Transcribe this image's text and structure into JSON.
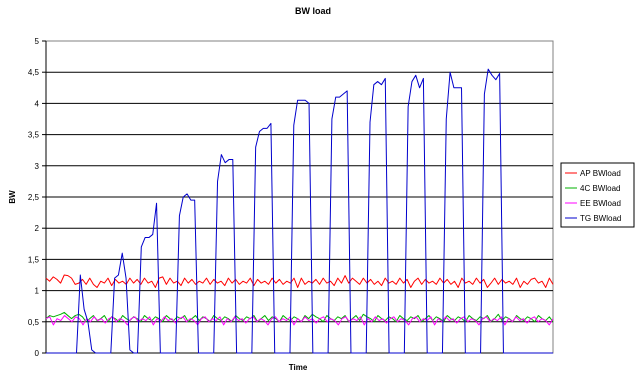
{
  "chart_data": {
    "type": "line",
    "title": "BW load",
    "xlabel": "Time",
    "ylabel": "BW",
    "ylim": [
      0,
      5
    ],
    "yticks": [
      "0",
      "0,5",
      "1",
      "1,5",
      "2",
      "2,5",
      "3",
      "3,5",
      "4",
      "4,5",
      "5"
    ],
    "grid": true,
    "legend_position": "right",
    "series": [
      {
        "name": "AP BWload",
        "color": "#ff0000",
        "values": [
          1.2,
          1.15,
          1.22,
          1.18,
          1.12,
          1.25,
          1.24,
          1.2,
          1.1,
          1.12,
          1.18,
          1.1,
          1.2,
          1.1,
          1.05,
          1.15,
          1.12,
          1.2,
          1.08,
          1.18,
          1.12,
          1.15,
          1.1,
          1.2,
          1.12,
          1.18,
          1.1,
          1.2,
          1.12,
          1.15,
          1.05,
          1.2,
          1.22,
          1.1,
          1.2,
          1.12,
          1.15,
          1.08,
          1.2,
          1.12,
          1.18,
          1.1,
          1.15,
          1.12,
          1.2,
          1.1,
          1.18,
          1.12,
          1.15,
          1.08,
          1.2,
          1.12,
          1.18,
          1.1,
          1.15,
          1.12,
          1.2,
          1.08,
          1.18,
          1.12,
          1.15,
          1.1,
          1.2,
          1.12,
          1.18,
          1.1,
          1.15,
          1.12,
          1.2,
          1.05,
          1.2,
          1.1,
          1.15,
          1.12,
          1.18,
          1.1,
          1.2,
          1.12,
          1.15,
          1.08,
          1.2,
          1.12,
          1.24,
          1.12,
          1.2,
          1.15,
          1.1,
          1.2,
          1.12,
          1.18,
          1.1,
          1.15,
          1.08,
          1.2,
          1.12,
          1.15,
          1.1,
          1.2,
          1.12,
          1.18,
          1.05,
          1.15,
          1.2,
          1.1,
          1.18,
          1.12,
          1.15,
          1.1,
          1.2,
          1.12,
          1.18,
          1.1,
          1.15,
          1.05,
          1.2,
          1.12,
          1.15,
          1.1,
          1.2,
          1.12,
          1.18,
          1.05,
          1.12,
          1.2,
          1.1,
          1.18,
          1.12,
          1.15,
          1.1,
          1.2,
          1.05,
          1.15,
          1.1,
          1.18,
          1.2,
          1.12,
          1.15,
          1.05,
          1.2,
          1.1
        ]
      },
      {
        "name": "4C BWload",
        "color": "#00b000",
        "values": [
          0.55,
          0.6,
          0.58,
          0.6,
          0.62,
          0.65,
          0.6,
          0.55,
          0.6,
          0.62,
          0.58,
          0.5,
          0.55,
          0.6,
          0.52,
          0.55,
          0.6,
          0.5,
          0.58,
          0.55,
          0.5,
          0.6,
          0.55,
          0.52,
          0.58,
          0.55,
          0.5,
          0.6,
          0.55,
          0.52,
          0.58,
          0.55,
          0.5,
          0.6,
          0.55,
          0.52,
          0.58,
          0.55,
          0.6,
          0.5,
          0.55,
          0.6,
          0.52,
          0.58,
          0.55,
          0.5,
          0.6,
          0.55,
          0.52,
          0.58,
          0.55,
          0.5,
          0.6,
          0.55,
          0.52,
          0.58,
          0.55,
          0.6,
          0.5,
          0.55,
          0.6,
          0.52,
          0.58,
          0.55,
          0.5,
          0.6,
          0.55,
          0.52,
          0.58,
          0.55,
          0.5,
          0.6,
          0.55,
          0.62,
          0.58,
          0.55,
          0.5,
          0.6,
          0.55,
          0.52,
          0.58,
          0.55,
          0.6,
          0.5,
          0.55,
          0.6,
          0.52,
          0.62,
          0.58,
          0.55,
          0.5,
          0.6,
          0.55,
          0.52,
          0.58,
          0.55,
          0.5,
          0.6,
          0.55,
          0.52,
          0.58,
          0.55,
          0.6,
          0.5,
          0.55,
          0.6,
          0.52,
          0.58,
          0.55,
          0.5,
          0.6,
          0.55,
          0.52,
          0.58,
          0.55,
          0.5,
          0.6,
          0.55,
          0.52,
          0.58,
          0.55,
          0.6,
          0.5,
          0.55,
          0.62,
          0.52,
          0.58,
          0.55,
          0.5,
          0.6,
          0.55,
          0.52,
          0.58,
          0.55,
          0.5,
          0.6,
          0.55,
          0.52,
          0.58,
          0.5
        ]
      },
      {
        "name": "EE BWload",
        "color": "#ff00ff",
        "values": [
          0.55,
          0.58,
          0.45,
          0.55,
          0.52,
          0.6,
          0.55,
          0.5,
          0.58,
          0.55,
          0.45,
          0.55,
          0.5,
          0.58,
          0.52,
          0.55,
          0.48,
          0.55,
          0.58,
          0.5,
          0.55,
          0.52,
          0.45,
          0.55,
          0.58,
          0.5,
          0.55,
          0.52,
          0.58,
          0.45,
          0.55,
          0.5,
          0.58,
          0.52,
          0.55,
          0.48,
          0.55,
          0.58,
          0.5,
          0.55,
          0.52,
          0.45,
          0.55,
          0.58,
          0.5,
          0.55,
          0.52,
          0.58,
          0.45,
          0.55,
          0.5,
          0.58,
          0.52,
          0.55,
          0.48,
          0.55,
          0.58,
          0.5,
          0.55,
          0.52,
          0.45,
          0.55,
          0.58,
          0.5,
          0.55,
          0.52,
          0.58,
          0.45,
          0.55,
          0.5,
          0.58,
          0.52,
          0.55,
          0.48,
          0.55,
          0.58,
          0.5,
          0.55,
          0.52,
          0.45,
          0.55,
          0.58,
          0.5,
          0.55,
          0.52,
          0.58,
          0.45,
          0.55,
          0.5,
          0.58,
          0.52,
          0.55,
          0.48,
          0.55,
          0.58,
          0.5,
          0.55,
          0.52,
          0.45,
          0.55,
          0.58,
          0.5,
          0.55,
          0.52,
          0.58,
          0.45,
          0.55,
          0.5,
          0.58,
          0.52,
          0.55,
          0.48,
          0.55,
          0.58,
          0.5,
          0.55,
          0.52,
          0.45,
          0.55,
          0.58,
          0.5,
          0.55,
          0.52,
          0.58,
          0.45,
          0.55,
          0.5,
          0.58,
          0.52,
          0.55,
          0.48,
          0.55,
          0.58,
          0.5,
          0.55,
          0.52,
          0.45,
          0.55
        ]
      },
      {
        "name": "TG BWload",
        "color": "#0000cc",
        "values": [
          0,
          0,
          0,
          0,
          0,
          0,
          0,
          0,
          0,
          1.25,
          0.7,
          0.5,
          0.05,
          0,
          0,
          0,
          0,
          0,
          1.2,
          1.25,
          1.6,
          1.2,
          0.05,
          0,
          0,
          1.7,
          1.85,
          1.85,
          1.9,
          2.4,
          0,
          0,
          0,
          0,
          0,
          2.2,
          2.5,
          2.55,
          2.45,
          2.45,
          0,
          0,
          0,
          0,
          0,
          2.75,
          3.18,
          3.05,
          3.1,
          3.1,
          0,
          0,
          0,
          0,
          0,
          3.3,
          3.55,
          3.6,
          3.6,
          3.68,
          0,
          0,
          0,
          0,
          0,
          3.65,
          4.05,
          4.05,
          4.05,
          4.0,
          0,
          0,
          0,
          0,
          0,
          3.75,
          4.1,
          4.1,
          4.15,
          4.2,
          0,
          0,
          0,
          0,
          0,
          3.7,
          4.3,
          4.35,
          4.3,
          4.4,
          0,
          0,
          0,
          0,
          0,
          3.95,
          4.35,
          4.45,
          4.25,
          4.4,
          0,
          0,
          0,
          0,
          0,
          3.75,
          4.5,
          4.25,
          4.25,
          4.25,
          0,
          0,
          0,
          0,
          0,
          4.15,
          4.55,
          4.45,
          4.38,
          4.48,
          0,
          0,
          0,
          0,
          0,
          0,
          0,
          0,
          0,
          0,
          0,
          0,
          0,
          0
        ]
      }
    ]
  }
}
